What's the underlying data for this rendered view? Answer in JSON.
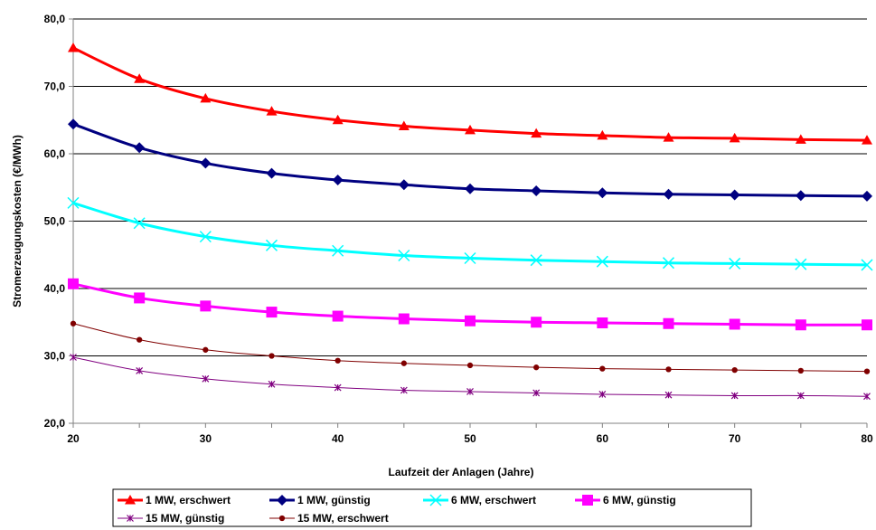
{
  "chart_data": {
    "type": "line",
    "title": "",
    "xlabel": "Laufzeit der Anlagen (Jahre)",
    "ylabel": "Stromerzeugungskosten (€/MWh)",
    "x": [
      20,
      25,
      30,
      35,
      40,
      45,
      50,
      55,
      60,
      65,
      70,
      75,
      80
    ],
    "xticks": [
      "20",
      "30",
      "40",
      "50",
      "60",
      "70",
      "80"
    ],
    "xtick_values": [
      20,
      30,
      40,
      50,
      60,
      70,
      80
    ],
    "ylim": [
      20,
      80
    ],
    "yticks": [
      "20,0",
      "30,0",
      "40,0",
      "50,0",
      "60,0",
      "70,0",
      "80,0"
    ],
    "ytick_values": [
      20,
      30,
      40,
      50,
      60,
      70,
      80
    ],
    "xlim": [
      20,
      80
    ],
    "grid": "horizontal",
    "legend_position": "bottom",
    "series": [
      {
        "name": "1 MW, erschwert",
        "color": "#ff0000",
        "marker": "triangle",
        "values": [
          75.7,
          71.1,
          68.2,
          66.3,
          65.0,
          64.1,
          63.5,
          63.0,
          62.7,
          62.4,
          62.3,
          62.1,
          62.0
        ]
      },
      {
        "name": "1 MW, günstig",
        "color": "#000080",
        "marker": "diamond",
        "values": [
          64.4,
          60.9,
          58.6,
          57.1,
          56.1,
          55.4,
          54.8,
          54.5,
          54.2,
          54.0,
          53.9,
          53.8,
          53.7
        ]
      },
      {
        "name": "6 MW, erschwert",
        "color": "#00ffff",
        "marker": "x",
        "values": [
          52.7,
          49.7,
          47.7,
          46.4,
          45.6,
          44.9,
          44.5,
          44.2,
          44.0,
          43.8,
          43.7,
          43.6,
          43.5
        ]
      },
      {
        "name": "6 MW, günstig",
        "color": "#ff00ff",
        "marker": "square",
        "values": [
          40.7,
          38.6,
          37.4,
          36.5,
          35.9,
          35.5,
          35.2,
          35.0,
          34.9,
          34.8,
          34.7,
          34.6,
          34.6
        ]
      },
      {
        "name": "15 MW, günstig",
        "color": "#800080",
        "marker": "star",
        "values": [
          29.8,
          27.8,
          26.6,
          25.8,
          25.3,
          24.9,
          24.7,
          24.5,
          24.3,
          24.2,
          24.1,
          24.1,
          24.0
        ]
      },
      {
        "name": "15 MW, erschwert",
        "color": "#800000",
        "marker": "circle",
        "values": [
          34.8,
          32.4,
          30.9,
          30.0,
          29.3,
          28.9,
          28.6,
          28.3,
          28.1,
          28.0,
          27.9,
          27.8,
          27.7
        ]
      }
    ]
  }
}
